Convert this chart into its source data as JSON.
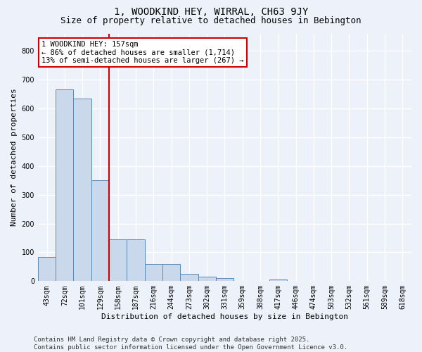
{
  "title": "1, WOODKIND HEY, WIRRAL, CH63 9JY",
  "subtitle": "Size of property relative to detached houses in Bebington",
  "xlabel": "Distribution of detached houses by size in Bebington",
  "ylabel": "Number of detached properties",
  "categories": [
    "43sqm",
    "72sqm",
    "101sqm",
    "129sqm",
    "158sqm",
    "187sqm",
    "216sqm",
    "244sqm",
    "273sqm",
    "302sqm",
    "331sqm",
    "359sqm",
    "388sqm",
    "417sqm",
    "446sqm",
    "474sqm",
    "503sqm",
    "532sqm",
    "561sqm",
    "589sqm",
    "618sqm"
  ],
  "values": [
    83,
    665,
    635,
    350,
    145,
    145,
    60,
    60,
    25,
    15,
    10,
    0,
    0,
    5,
    0,
    0,
    0,
    0,
    0,
    0,
    0
  ],
  "bar_color": "#c9d9eb",
  "bar_edge_color": "#5a8ab5",
  "vline_color": "#cc0000",
  "annotation_text": "1 WOODKIND HEY: 157sqm\n← 86% of detached houses are smaller (1,714)\n13% of semi-detached houses are larger (267) →",
  "annotation_box_color": "#cc0000",
  "ylim": [
    0,
    860
  ],
  "yticks": [
    0,
    100,
    200,
    300,
    400,
    500,
    600,
    700,
    800
  ],
  "bg_color": "#edf1f9",
  "grid_color": "#ffffff",
  "footer": "Contains HM Land Registry data © Crown copyright and database right 2025.\nContains public sector information licensed under the Open Government Licence v3.0.",
  "title_fontsize": 10,
  "subtitle_fontsize": 9,
  "axis_fontsize": 8,
  "tick_fontsize": 7,
  "footer_fontsize": 6.5
}
